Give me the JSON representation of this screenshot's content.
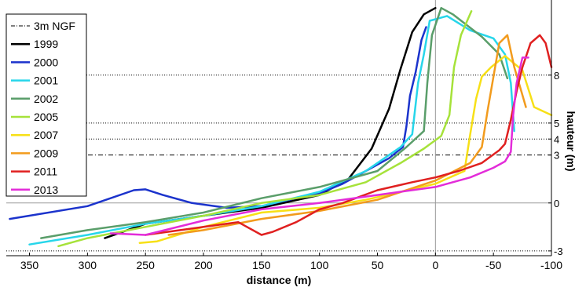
{
  "chart_data": {
    "type": "line",
    "xlabel": "distance (m)",
    "ylabel": "hauteur (m)",
    "x_reversed": true,
    "xlim": [
      370,
      -100
    ],
    "ylim": [
      -3.3,
      12.7
    ],
    "x_ticks": [
      {
        "value": 350,
        "label": "350"
      },
      {
        "value": 300,
        "label": "300"
      },
      {
        "value": 250,
        "label": "250"
      },
      {
        "value": 200,
        "label": "200"
      },
      {
        "value": 150,
        "label": "150"
      },
      {
        "value": 100,
        "label": "100"
      },
      {
        "value": 50,
        "label": "50"
      },
      {
        "value": 0,
        "label": "0"
      },
      {
        "value": -50,
        "label": "-50"
      },
      {
        "value": -100,
        "label": "-100"
      }
    ],
    "y_ticks": [
      {
        "value": 8,
        "label": "8"
      },
      {
        "value": 5,
        "label": "5"
      },
      {
        "value": 4,
        "label": "4"
      },
      {
        "value": 3,
        "label": "3"
      },
      {
        "value": 0,
        "label": "0"
      },
      {
        "value": -3,
        "label": "-3"
      }
    ],
    "reference_lines": [
      {
        "y": 8,
        "style": "dotted"
      },
      {
        "y": 5,
        "style": "dotted"
      },
      {
        "y": 4,
        "style": "dotted"
      },
      {
        "y": 3,
        "style": "dashdot",
        "name": "3m NGF"
      },
      {
        "y": 0,
        "style": "solid"
      },
      {
        "y": -3,
        "style": "dotted"
      },
      {
        "x": 0,
        "style": "solid",
        "axis": "vertical"
      }
    ],
    "legend_position": "top-left",
    "series": [
      {
        "name": "1999",
        "color": "#000000",
        "points": [
          [
            285,
            -2.2
          ],
          [
            250,
            -1.3
          ],
          [
            200,
            -0.8
          ],
          [
            150,
            -0.3
          ],
          [
            100,
            0.5
          ],
          [
            75,
            1.5
          ],
          [
            55,
            3.4
          ],
          [
            40,
            5.9
          ],
          [
            30,
            8.4
          ],
          [
            20,
            10.7
          ],
          [
            10,
            11.8
          ],
          [
            0,
            12.2
          ]
        ]
      },
      {
        "name": "2000",
        "color": "#1b33cc",
        "points": [
          [
            367,
            -1.0
          ],
          [
            300,
            -0.2
          ],
          [
            260,
            0.8
          ],
          [
            250,
            0.85
          ],
          [
            235,
            0.5
          ],
          [
            210,
            0.0
          ],
          [
            180,
            -0.3
          ],
          [
            150,
            -0.2
          ],
          [
            120,
            0.3
          ],
          [
            100,
            0.6
          ],
          [
            80,
            1.2
          ],
          [
            60,
            2.0
          ],
          [
            40,
            2.8
          ],
          [
            28,
            3.5
          ],
          [
            25,
            4.8
          ],
          [
            22,
            6.7
          ],
          [
            17,
            8.2
          ],
          [
            12,
            10.2
          ],
          [
            8,
            11.0
          ]
        ]
      },
      {
        "name": "2001",
        "color": "#27d6ea",
        "points": [
          [
            350,
            -2.6
          ],
          [
            300,
            -2.0
          ],
          [
            250,
            -1.3
          ],
          [
            200,
            -0.8
          ],
          [
            150,
            -0.2
          ],
          [
            100,
            0.7
          ],
          [
            60,
            2.0
          ],
          [
            30,
            3.5
          ],
          [
            20,
            4.3
          ],
          [
            15,
            7.5
          ],
          [
            10,
            9.3
          ],
          [
            5,
            11.4
          ],
          [
            -10,
            11.7
          ],
          [
            -30,
            10.8
          ],
          [
            -50,
            10.3
          ],
          [
            -60,
            9.3
          ],
          [
            -65,
            7.5
          ],
          [
            -68,
            4.5
          ]
        ]
      },
      {
        "name": "2002",
        "color": "#5a9e6a",
        "points": [
          [
            340,
            -2.2
          ],
          [
            300,
            -1.7
          ],
          [
            250,
            -1.2
          ],
          [
            200,
            -0.6
          ],
          [
            150,
            0.3
          ],
          [
            100,
            1.0
          ],
          [
            50,
            2.0
          ],
          [
            25,
            3.5
          ],
          [
            10,
            4.5
          ],
          [
            7,
            7.5
          ],
          [
            3,
            10.5
          ],
          [
            -5,
            12.2
          ],
          [
            -15,
            11.8
          ],
          [
            -40,
            10.4
          ],
          [
            -55,
            9.3
          ],
          [
            -62,
            7.8
          ]
        ]
      },
      {
        "name": "2005",
        "color": "#a6e23a",
        "points": [
          [
            325,
            -2.7
          ],
          [
            300,
            -2.2
          ],
          [
            250,
            -1.5
          ],
          [
            200,
            -0.8
          ],
          [
            150,
            0.0
          ],
          [
            100,
            0.5
          ],
          [
            60,
            1.3
          ],
          [
            30,
            2.5
          ],
          [
            10,
            3.4
          ],
          [
            -5,
            4.2
          ],
          [
            -12,
            5.5
          ],
          [
            -16,
            8.5
          ],
          [
            -22,
            10.5
          ],
          [
            -31,
            12.0
          ]
        ]
      },
      {
        "name": "2007",
        "color": "#f7e017",
        "points": [
          [
            255,
            -2.5
          ],
          [
            240,
            -2.4
          ],
          [
            200,
            -1.5
          ],
          [
            150,
            -0.6
          ],
          [
            100,
            -0.3
          ],
          [
            60,
            0.2
          ],
          [
            30,
            0.7
          ],
          [
            0,
            1.2
          ],
          [
            -25,
            2.0
          ],
          [
            -30,
            4.3
          ],
          [
            -35,
            6.5
          ],
          [
            -40,
            7.9
          ],
          [
            -48,
            8.5
          ],
          [
            -60,
            9.2
          ],
          [
            -75,
            8.3
          ],
          [
            -85,
            6.0
          ],
          [
            -100,
            5.5
          ]
        ]
      },
      {
        "name": "2009",
        "color": "#f29b1d",
        "points": [
          [
            230,
            -2.0
          ],
          [
            200,
            -1.7
          ],
          [
            150,
            -1.0
          ],
          [
            100,
            -0.5
          ],
          [
            50,
            0.2
          ],
          [
            0,
            1.4
          ],
          [
            -30,
            2.5
          ],
          [
            -40,
            3.5
          ],
          [
            -45,
            5.8
          ],
          [
            -50,
            7.9
          ],
          [
            -55,
            10.0
          ],
          [
            -62,
            10.5
          ],
          [
            -68,
            8.5
          ],
          [
            -74,
            7.0
          ],
          [
            -78,
            6.0
          ]
        ]
      },
      {
        "name": "2011",
        "color": "#e02020",
        "points": [
          [
            250,
            -2.0
          ],
          [
            220,
            -1.7
          ],
          [
            200,
            -1.5
          ],
          [
            170,
            -1.2
          ],
          [
            150,
            -2.0
          ],
          [
            140,
            -1.8
          ],
          [
            120,
            -1.2
          ],
          [
            100,
            -0.4
          ],
          [
            80,
            0.0
          ],
          [
            50,
            0.8
          ],
          [
            20,
            1.3
          ],
          [
            0,
            1.6
          ],
          [
            -20,
            2.0
          ],
          [
            -40,
            2.5
          ],
          [
            -55,
            3.3
          ],
          [
            -60,
            3.7
          ],
          [
            -65,
            5.2
          ],
          [
            -70,
            7.0
          ],
          [
            -75,
            8.5
          ],
          [
            -82,
            10.0
          ],
          [
            -90,
            10.5
          ],
          [
            -95,
            10.0
          ],
          [
            -100,
            8.5
          ]
        ]
      },
      {
        "name": "2013",
        "color": "#e32cd9",
        "points": [
          [
            280,
            -1.9
          ],
          [
            250,
            -2.0
          ],
          [
            200,
            -1.1
          ],
          [
            150,
            -0.4
          ],
          [
            100,
            0.0
          ],
          [
            50,
            0.5
          ],
          [
            0,
            1.0
          ],
          [
            -30,
            1.6
          ],
          [
            -50,
            2.2
          ],
          [
            -60,
            2.6
          ],
          [
            -65,
            3.2
          ],
          [
            -67,
            5.5
          ],
          [
            -70,
            7.5
          ],
          [
            -75,
            9.1
          ],
          [
            -80,
            9.1
          ]
        ]
      }
    ]
  }
}
